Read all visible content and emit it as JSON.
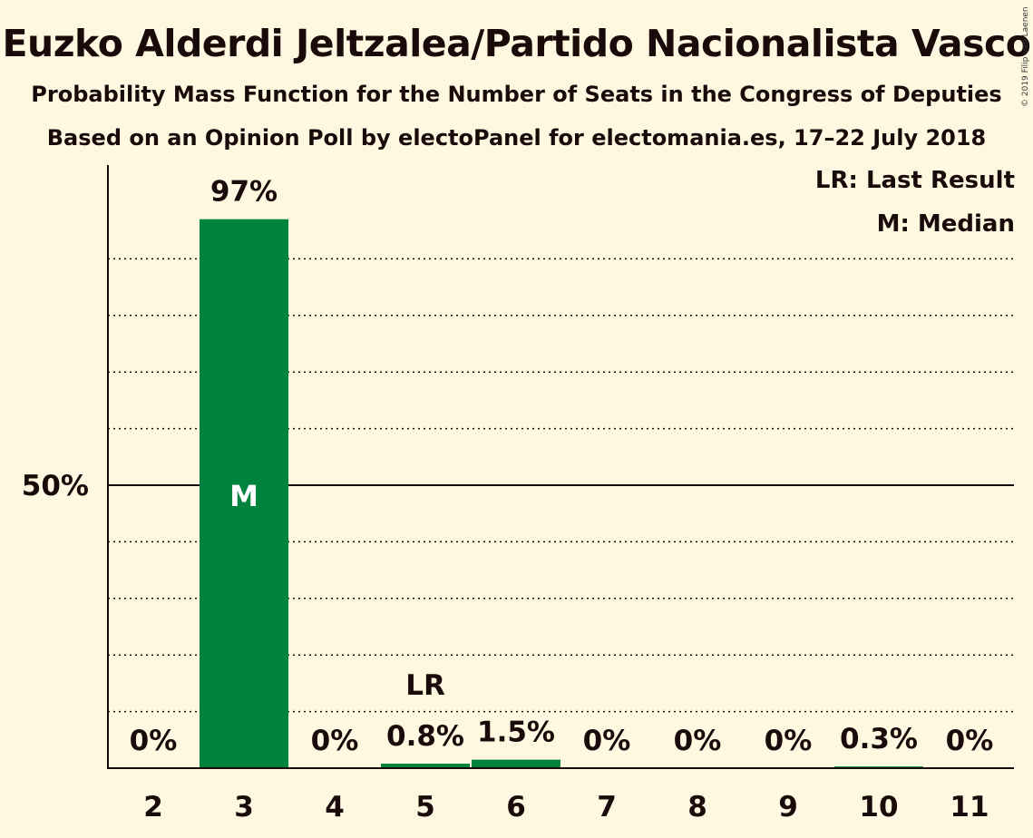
{
  "title": "Euzko Alderdi Jeltzalea/Partido Nacionalista Vasco",
  "subtitle": "Probability Mass Function for the Number of Seats in the Congress of Deputies",
  "subtitle2": "Based on an Opinion Poll by electoPanel for electomania.es, 17–22 July 2018",
  "copyright": "© 2019 Filip van Laenen",
  "legend": {
    "last_result": "LR: Last Result",
    "median": "M: Median"
  },
  "colors": {
    "bar": "#00843D",
    "background": "#FFF8E1",
    "text": "#1a0a0a"
  },
  "chart_data": {
    "type": "bar",
    "categories": [
      "2",
      "3",
      "4",
      "5",
      "6",
      "7",
      "8",
      "9",
      "10",
      "11"
    ],
    "values": [
      0,
      97,
      0,
      0.8,
      1.5,
      0,
      0,
      0,
      0.3,
      0
    ],
    "value_labels": [
      "0%",
      "97%",
      "0%",
      "0.8%",
      "1.5%",
      "0%",
      "0%",
      "0%",
      "0.3%",
      "0%"
    ],
    "ylim": [
      0,
      106
    ],
    "yticks": [
      {
        "value": 50,
        "label": "50%"
      }
    ],
    "gridlines": [
      10,
      20,
      30,
      40,
      60,
      70,
      80,
      90
    ],
    "median_category": "3",
    "median_label": "M",
    "last_result_category": "5",
    "last_result_label": "LR",
    "grid": true,
    "legend_position": "top-right"
  }
}
